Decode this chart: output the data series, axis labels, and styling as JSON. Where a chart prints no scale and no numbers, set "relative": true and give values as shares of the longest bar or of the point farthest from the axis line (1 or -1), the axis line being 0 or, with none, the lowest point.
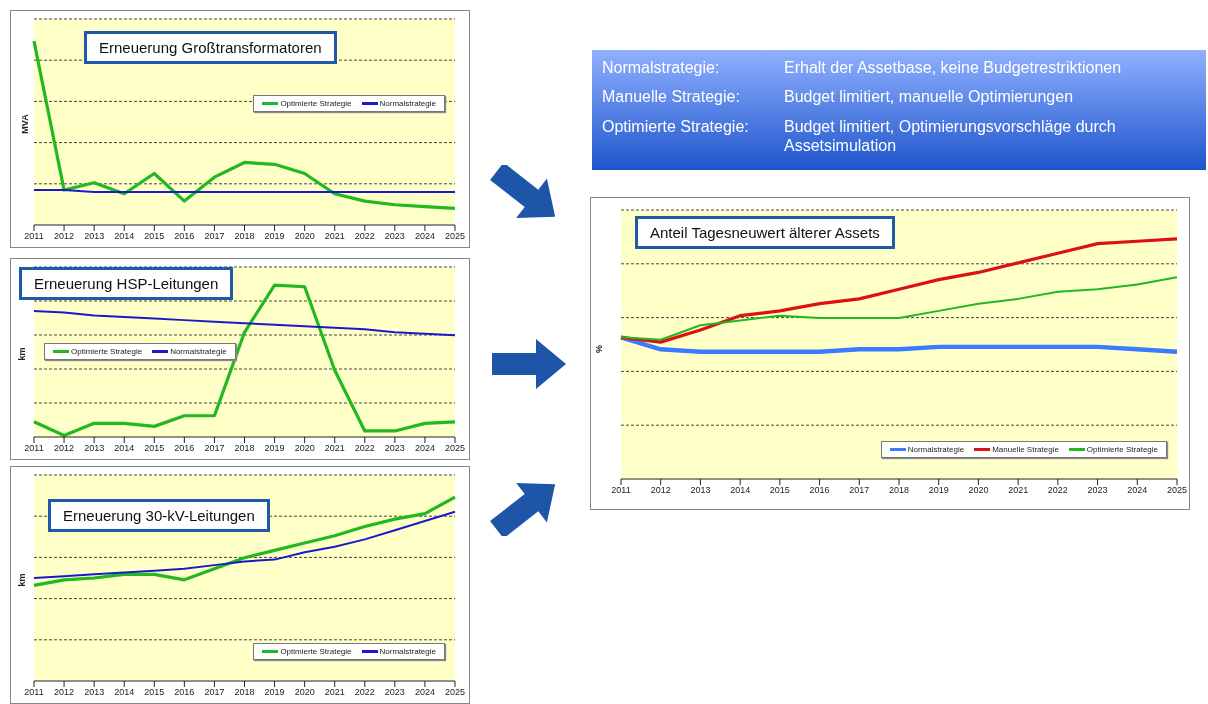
{
  "chart_data": [
    {
      "type": "line",
      "title": "Erneuerung Großtransformatoren",
      "ylabel": "MVA",
      "relative": true,
      "grid": "y",
      "legend": "right",
      "categories": [
        "2011",
        "2012",
        "2013",
        "2014",
        "2015",
        "2016",
        "2017",
        "2018",
        "2019",
        "2020",
        "2021",
        "2022",
        "2023",
        "2024",
        "2025"
      ],
      "series": [
        {
          "name": "Optimierte Strategie",
          "color": "#22b822",
          "values": [
            1,
            0.19,
            0.23,
            0.17,
            0.28,
            0.13,
            0.26,
            0.34,
            0.33,
            0.28,
            0.17,
            0.13,
            0.11,
            0.1,
            0.09
          ]
        },
        {
          "name": "Normalstrategie",
          "color": "#1a1acc",
          "values": [
            0.19,
            0.19,
            0.18,
            0.18,
            0.18,
            0.18,
            0.18,
            0.18,
            0.18,
            0.18,
            0.18,
            0.18,
            0.18,
            0.18,
            0.18
          ]
        }
      ]
    },
    {
      "type": "other",
      "annotations": [
        "Normalstrategie:",
        "Erhalt der Assetbase, keine Budgetrestriktionen",
        "Manuelle Strategie:",
        "Budget limitiert, manuelle Optimierungen",
        "Optimierte Strategie:",
        "Budget limitiert, Optimierungsvorschläge durch Assetsimulation"
      ]
    },
    {
      "type": "line",
      "title": "Anteil Tagesneuwert älterer Assets",
      "ylabel": "%",
      "relative": true,
      "grid": "y",
      "legend": "bottom right",
      "categories": [
        "2011",
        "2012",
        "2013",
        "2014",
        "2015",
        "2016",
        "2017",
        "2018",
        "2019",
        "2020",
        "2021",
        "2022",
        "2023",
        "2024",
        "2025"
      ],
      "series": [
        {
          "name": "Normalstrategie",
          "color": "#3a7bff",
          "values": [
            0.59,
            0.54,
            0.53,
            0.53,
            0.53,
            0.53,
            0.54,
            0.54,
            0.55,
            0.55,
            0.55,
            0.55,
            0.55,
            0.54,
            0.53
          ]
        },
        {
          "name": "Manuelle Strategie",
          "color": "#dd1111",
          "values": [
            0.59,
            0.57,
            0.62,
            0.68,
            0.7,
            0.73,
            0.75,
            0.79,
            0.83,
            0.86,
            0.9,
            0.94,
            0.98,
            0.99,
            1
          ]
        },
        {
          "name": "Optimierte Strategie",
          "color": "#22b822",
          "values": [
            0.59,
            0.58,
            0.64,
            0.66,
            0.68,
            0.67,
            0.67,
            0.67,
            0.7,
            0.73,
            0.75,
            0.78,
            0.79,
            0.81,
            0.84
          ]
        }
      ]
    },
    {
      "type": "line",
      "title": "Erneuerung HSP-Leitungen",
      "ylabel": "km",
      "relative": true,
      "grid": "y",
      "legend": "left",
      "categories": [
        "2011",
        "2012",
        "2013",
        "2014",
        "2015",
        "2016",
        "2017",
        "2018",
        "2019",
        "2020",
        "2021",
        "2022",
        "2023",
        "2024",
        "2025"
      ],
      "series": [
        {
          "name": "Optimierte Strategie",
          "color": "#22b822",
          "values": [
            0.1,
            0.01,
            0.09,
            0.09,
            0.07,
            0.14,
            0.14,
            0.69,
            1,
            0.99,
            0.44,
            0.04,
            0.04,
            0.09,
            0.1
          ]
        },
        {
          "name": "Normalstrategie",
          "color": "#1a1acc",
          "values": [
            0.83,
            0.82,
            0.8,
            0.79,
            0.78,
            0.77,
            0.76,
            0.75,
            0.74,
            0.73,
            0.72,
            0.71,
            0.69,
            0.68,
            0.67
          ]
        }
      ]
    },
    {
      "type": "line",
      "title": "Erneuerung 30-kV-Leitungen",
      "ylabel": "km",
      "relative": true,
      "grid": "y",
      "legend": "bottom right",
      "categories": [
        "2011",
        "2012",
        "2013",
        "2014",
        "2015",
        "2016",
        "2017",
        "2018",
        "2019",
        "2020",
        "2021",
        "2022",
        "2023",
        "2024",
        "2025"
      ],
      "series": [
        {
          "name": "Optimierte Strategie",
          "color": "#22b822",
          "values": [
            0.52,
            0.55,
            0.56,
            0.58,
            0.58,
            0.55,
            0.61,
            0.67,
            0.71,
            0.75,
            0.79,
            0.84,
            0.88,
            0.91,
            1
          ]
        },
        {
          "name": "Normalstrategie",
          "color": "#1a1acc",
          "values": [
            0.56,
            0.57,
            0.58,
            0.59,
            0.6,
            0.61,
            0.63,
            0.65,
            0.66,
            0.7,
            0.73,
            0.77,
            0.82,
            0.87,
            0.92
          ]
        }
      ]
    }
  ]
}
